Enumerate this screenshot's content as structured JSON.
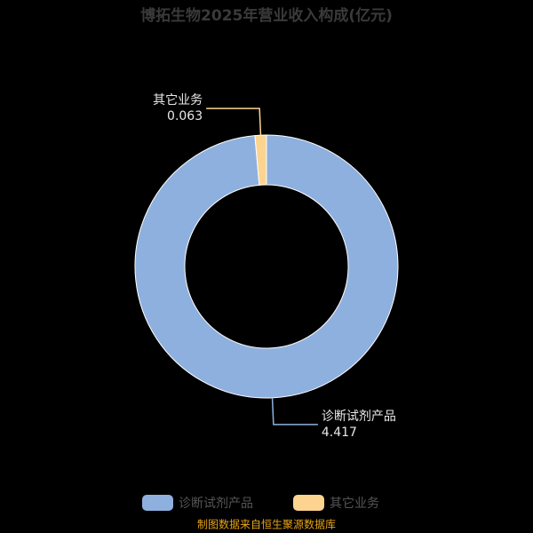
{
  "chart_data": {
    "type": "donut",
    "title": "博拓生物2025年营业收入构成(亿元)",
    "categories": [
      "诊断试剂产品",
      "其它业务"
    ],
    "values": [
      4.417,
      0.063
    ],
    "colors": [
      "#8eb0de",
      "#fcd490"
    ],
    "legend": "bottom",
    "source": "制图数据来自恒生聚源数据库"
  }
}
